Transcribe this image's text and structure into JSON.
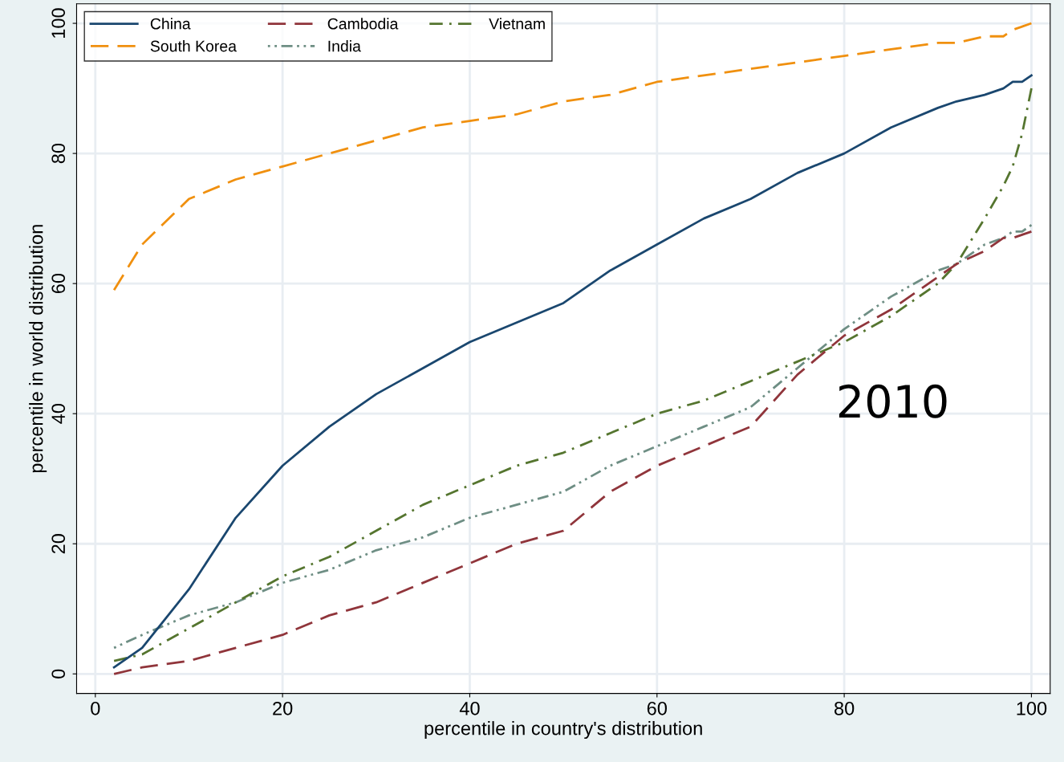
{
  "chart_data": {
    "type": "line",
    "xlabel": "percentile in country's distribution",
    "ylabel": "percentile in world distribution",
    "x": [
      2,
      5,
      10,
      15,
      20,
      25,
      30,
      35,
      40,
      45,
      50,
      55,
      60,
      65,
      70,
      75,
      80,
      85,
      90,
      92,
      95,
      97,
      98,
      99,
      100
    ],
    "series": [
      {
        "name": "China",
        "color": "#1a476f",
        "line_style": "solid",
        "values": [
          1,
          4,
          13,
          24,
          32,
          38,
          43,
          47,
          51,
          54,
          57,
          62,
          66,
          70,
          73,
          77,
          80,
          84,
          87,
          88,
          89,
          90,
          91,
          91,
          92
        ]
      },
      {
        "name": "South Korea",
        "color": "#f0900f",
        "line_style": "dashed",
        "values": [
          59,
          66,
          73,
          76,
          78,
          80,
          82,
          84,
          85,
          86,
          88,
          89,
          91,
          92,
          93,
          94,
          95,
          96,
          97,
          97,
          98,
          98,
          99,
          99.5,
          100
        ]
      },
      {
        "name": "Cambodia",
        "color": "#90353b",
        "line_style": "dashed",
        "values": [
          0,
          1,
          2,
          4,
          6,
          9,
          11,
          14,
          17,
          20,
          22,
          28,
          32,
          35,
          38,
          46,
          52,
          56,
          61,
          63,
          65,
          67,
          67,
          67.5,
          68
        ]
      },
      {
        "name": "India",
        "color": "#6e8e84",
        "line_style": "dotted",
        "values": [
          4,
          6,
          9,
          11,
          14,
          16,
          19,
          21,
          24,
          26,
          28,
          32,
          35,
          38,
          41,
          47,
          53,
          58,
          62,
          63,
          66,
          67,
          68,
          68,
          69
        ]
      },
      {
        "name": "Vietnam",
        "color": "#55752f",
        "line_style": "dashdot",
        "values": [
          2,
          3,
          7,
          11,
          15,
          18,
          22,
          26,
          29,
          32,
          34,
          37,
          40,
          42,
          45,
          48,
          51,
          55,
          60,
          63,
          70,
          75,
          78,
          83,
          90
        ]
      }
    ],
    "xlim": [
      -2,
      102
    ],
    "xticks": [
      0,
      20,
      40,
      60,
      80,
      100
    ],
    "ylim": [
      -3,
      103
    ],
    "yticks": [
      0,
      20,
      40,
      60,
      80,
      100
    ],
    "grid": true,
    "legend": "top left",
    "marker": "none",
    "annotations": [
      "2010"
    ]
  }
}
